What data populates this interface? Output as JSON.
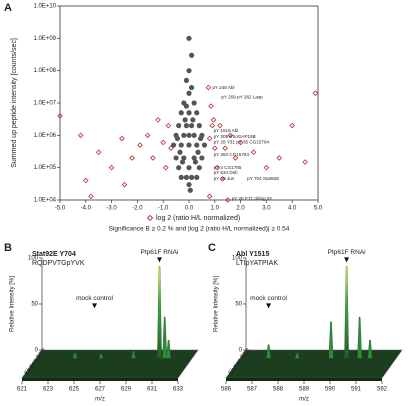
{
  "chart_data": [
    {
      "type": "scatter",
      "panel": "A",
      "ylabel": "Summed up peptide intensity [counts/sec]",
      "note": "Significance B ≥ 0.2 % and |log 2 (ratio H/L normalized)| ≥ 0.54",
      "ylog": true,
      "xlim": [
        -5,
        5
      ],
      "ylim": [
        10000,
        10000000000
      ],
      "xticks": [
        {
          "value": -5,
          "label": "-5.0"
        },
        {
          "value": -4,
          "label": "-4.0"
        },
        {
          "value": -3,
          "label": "-3.0"
        },
        {
          "value": -2,
          "label": "-2.0"
        },
        {
          "value": -1,
          "label": "-1.0"
        },
        {
          "value": 0,
          "label": "0.0"
        },
        {
          "value": 1,
          "label": "1.0"
        },
        {
          "value": 2,
          "label": "2.0"
        },
        {
          "value": 3,
          "label": "3.0"
        },
        {
          "value": 4,
          "label": "4.0"
        },
        {
          "value": 5,
          "label": "5.0"
        }
      ],
      "yticks": [
        {
          "value": 10000,
          "label": "1.0E+04"
        },
        {
          "value": 100000,
          "label": "1.0E+05"
        },
        {
          "value": 1000000,
          "label": "1.0E+06"
        },
        {
          "value": 10000000,
          "label": "1.0E+07"
        },
        {
          "value": 100000000,
          "label": "1.0E+08"
        },
        {
          "value": 1000000000,
          "label": "1.0E+09"
        },
        {
          "value": 10000000000,
          "label": "1.0E+10"
        }
      ],
      "series": [
        {
          "color": "#555555",
          "marker": "circle",
          "x": [
            0,
            0.1,
            -0.1,
            0,
            0.2,
            -0.2,
            0.3,
            -0.3,
            0,
            0.4,
            -0.4,
            0.1,
            -0.1,
            0.5,
            -0.5,
            0.2,
            -0.2,
            0,
            0.6,
            -0.6,
            0.3,
            -0.3,
            0,
            0.5,
            -0.5,
            0.2,
            -0.2,
            0.4,
            -0.4,
            0,
            0.1,
            -0.1,
            0.3,
            -0.3,
            0,
            0.1,
            -0.1,
            0.15,
            -0.15,
            0.35,
            -0.35,
            0.25,
            -0.25,
            0.05,
            0.45,
            -0.45,
            0
          ],
          "values": [
            100000000,
            300000000,
            50000000,
            20000000,
            10000000,
            10000000,
            5000000,
            5000000,
            5000000,
            2000000,
            2000000,
            2000000,
            2000000,
            1000000,
            1000000,
            1000000,
            1000000,
            1000000,
            500000,
            500000,
            500000,
            500000,
            500000,
            200000,
            200000,
            200000,
            200000,
            100000,
            100000,
            100000,
            50000,
            50000,
            50000,
            50000,
            30000,
            30000000,
            8000000,
            3000000,
            3000000,
            300000,
            300000,
            150000,
            150000,
            20000,
            800000,
            800000,
            1000000000
          ]
        },
        {
          "name": "log 2 (ratio H/L normalized)",
          "color": "#c0282d",
          "marker": "diamond",
          "x": [
            -5,
            -4.2,
            -3.5,
            -3,
            -2.6,
            -2.2,
            -1.9,
            -1.6,
            -1.4,
            -1.2,
            -1,
            -0.9,
            -0.8,
            -0.7,
            -4,
            -3.8,
            -2.5,
            0.8,
            0.9,
            1,
            1.1,
            1.2,
            1.4,
            1.6,
            1.8,
            2,
            2.5,
            3,
            3.5,
            4.9,
            4,
            0.85,
            0.95,
            0.8,
            0.75,
            1.3,
            4.5,
            1.5
          ],
          "values": [
            4000000,
            1000000,
            300000,
            100000,
            800000,
            200000,
            500000,
            1000000,
            200000,
            3000000,
            600000,
            100000,
            2000000,
            400000,
            40000,
            13000,
            30000,
            800000,
            2000000,
            400000,
            100000,
            2000000,
            400000,
            1000000,
            200000,
            600000,
            300000,
            100000,
            200000,
            20000000,
            2000000,
            8000000,
            3000000,
            13000,
            30000000,
            45000,
            150000,
            10000
          ]
        }
      ],
      "annotations": [
        {
          "text": "pY 248 Abl",
          "x": 0.75,
          "y": 30000000
        },
        {
          "text": "pY 259 pY 262 Lasp",
          "x": 1.1,
          "y": 15000000
        },
        {
          "text": "pY 1515 Abl",
          "x": 0.8,
          "y": 1400000
        },
        {
          "text": "pY 305 RhoGAP19B",
          "x": 0.8,
          "y": 900000
        },
        {
          "text": "pY 28 Y31 pY 35 CG15784",
          "x": 0.8,
          "y": 600000
        },
        {
          "text": "pY 364 CG15784",
          "x": 0.8,
          "y": 250000
        },
        {
          "text": "pY 3 CG1785",
          "x": 0.8,
          "y": 100000
        },
        {
          "text": "pY 834 Dsh",
          "x": 0.8,
          "y": 70000
        },
        {
          "text": "pY 40 Jun",
          "x": 0.8,
          "y": 45000
        },
        {
          "text": "pY 704 Stat92E",
          "x": 2.1,
          "y": 45000
        },
        {
          "text": "pY 28 E71 ribbig 02",
          "x": 1.5,
          "y": 11000
        }
      ]
    },
    {
      "type": "chromatogram",
      "panel": "B",
      "title": "Stat92E Y704",
      "subtitle": "RQDPVTGpYVK",
      "ylabel": "Relative Intensity [%]",
      "xlabel": "m/z",
      "depth_label": "Elution time",
      "xlim": [
        621,
        633
      ],
      "xticks": [
        621,
        623,
        625,
        627,
        629,
        631,
        633
      ],
      "ylim": [
        0,
        100
      ],
      "yticks": [
        0,
        50,
        100
      ],
      "color": "#2e8b3a",
      "peak_color": "#e8e83a",
      "x": [
        624,
        626,
        628.5,
        630.5,
        630.9,
        631.2
      ],
      "values": [
        6,
        5,
        8,
        100,
        45,
        20
      ],
      "annotations": [
        {
          "text": "mock control",
          "x": 625.5
        },
        {
          "text": "Ptp61F RNAi",
          "x": 630.5
        }
      ]
    },
    {
      "type": "chromatogram",
      "panel": "C",
      "title": "Abl Y1515",
      "subtitle": "LTIpYATPIAK",
      "ylabel": "Relative Intensity [%]",
      "xlabel": "m/z",
      "depth_label": "Elution time",
      "xlim": [
        586,
        592
      ],
      "xticks": [
        586,
        587,
        588,
        589,
        590,
        591,
        592
      ],
      "ylim": [
        0,
        100
      ],
      "yticks": [
        0,
        50,
        100
      ],
      "color": "#2e8b3a",
      "peak_color": "#e8e83a",
      "x": [
        587.1,
        588.2,
        589.5,
        590.1,
        590.6,
        591
      ],
      "values": [
        15,
        6,
        40,
        100,
        45,
        20
      ],
      "annotations": [
        {
          "text": "mock control",
          "x": 587.1
        },
        {
          "text": "Ptp61F RNAi",
          "x": 590.1
        }
      ]
    }
  ]
}
